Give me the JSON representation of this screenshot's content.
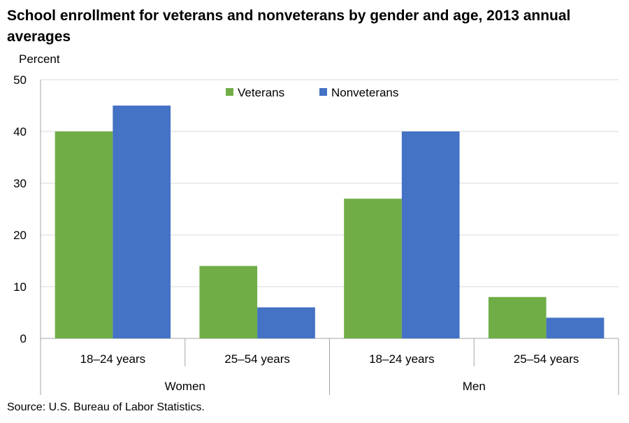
{
  "chart_data": {
    "type": "bar",
    "title": "School enrollment for veterans and nonveterans by gender and age, 2013 annual averages",
    "ylabel": "Percent",
    "ylim": [
      0,
      50
    ],
    "yticks": [
      0,
      10,
      20,
      30,
      40,
      50
    ],
    "grid": true,
    "legend_position": "top-center",
    "groups": [
      {
        "label": "Women",
        "categories": [
          "18–24 years",
          "25–54 years"
        ]
      },
      {
        "label": "Men",
        "categories": [
          "18–24 years",
          "25–54 years"
        ]
      }
    ],
    "categories": [
      "18–24 years",
      "25–54 years",
      "18–24 years",
      "25–54 years"
    ],
    "series": [
      {
        "name": "Veterans",
        "color": "#70ad47",
        "values": [
          40,
          14,
          27,
          8
        ]
      },
      {
        "name": "Nonveterans",
        "color": "#4472c4",
        "values": [
          45,
          6,
          40,
          4
        ]
      }
    ]
  },
  "source": "Source: U.S. Bureau of Labor Statistics."
}
